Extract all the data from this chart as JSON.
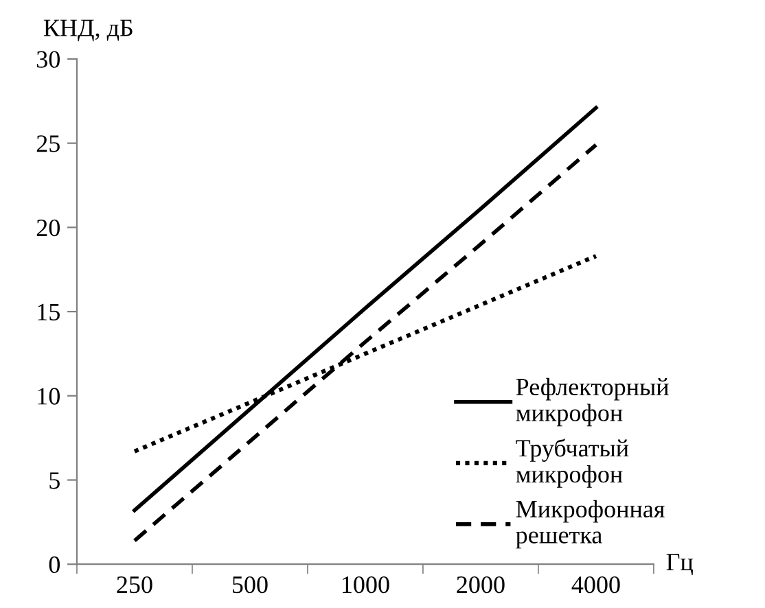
{
  "chart_data": {
    "type": "line",
    "ylabel": "КНД, дБ",
    "xlabel": "Гц",
    "categories": [
      "250",
      "500",
      "1000",
      "2000",
      "4000"
    ],
    "series": [
      {
        "name": "Рефлекторный\nмикрофон",
        "color": "#000000",
        "line_style": "solid",
        "values": [
          3.2,
          9.2,
          15.2,
          21.1,
          27.1
        ]
      },
      {
        "name": "Трубчатый\nмикрофон",
        "color": "#000000",
        "line_style": "dotted",
        "values": [
          6.7,
          9.6,
          12.5,
          15.4,
          18.3
        ]
      },
      {
        "name": "Микрофонная\nрешетка",
        "color": "#000000",
        "line_style": "dashed",
        "values": [
          1.4,
          7.3,
          13.2,
          19.0,
          24.9
        ]
      }
    ],
    "ylim": [
      0,
      30
    ],
    "yticks": [
      0,
      5,
      10,
      15,
      20,
      25,
      30
    ],
    "grid": false,
    "legend": "right"
  }
}
